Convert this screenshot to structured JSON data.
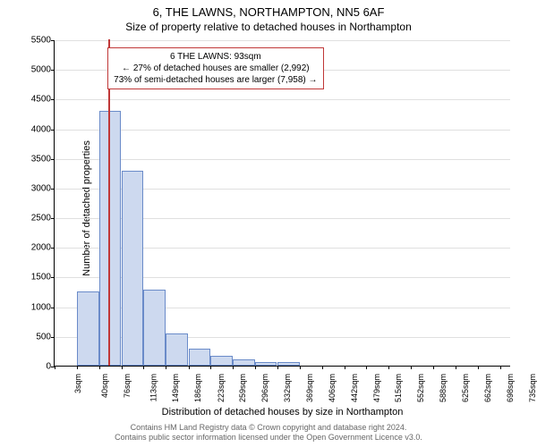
{
  "title": "6, THE LAWNS, NORTHAMPTON, NN5 6AF",
  "subtitle": "Size of property relative to detached houses in Northampton",
  "ylabel": "Number of detached properties",
  "xlabel": "Distribution of detached houses by size in Northampton",
  "footer_line1": "Contains HM Land Registry data © Crown copyright and database right 2024.",
  "footer_line2": "Contains public sector information licensed under the Open Government Licence v3.0.",
  "chart": {
    "type": "histogram",
    "ylim": [
      0,
      5500
    ],
    "ytick_step": 500,
    "x_min": 3,
    "x_max": 753,
    "bin_width": 37,
    "bar_fill": "#cdd9ef",
    "bar_stroke": "#6a8bc9",
    "grid_color": "#e0e0e0",
    "background_color": "#ffffff",
    "marker_x": 93,
    "marker_color": "#c03838",
    "xticks": [
      3,
      40,
      76,
      113,
      149,
      186,
      223,
      259,
      296,
      332,
      369,
      406,
      442,
      479,
      515,
      552,
      588,
      625,
      662,
      698,
      735
    ],
    "xtick_unit": "sqm",
    "bins": [
      {
        "start": 3,
        "count": 0
      },
      {
        "start": 40,
        "count": 1250
      },
      {
        "start": 76,
        "count": 4300
      },
      {
        "start": 113,
        "count": 3280
      },
      {
        "start": 149,
        "count": 1280
      },
      {
        "start": 186,
        "count": 550
      },
      {
        "start": 223,
        "count": 280
      },
      {
        "start": 259,
        "count": 160
      },
      {
        "start": 296,
        "count": 100
      },
      {
        "start": 332,
        "count": 60
      },
      {
        "start": 369,
        "count": 55
      },
      {
        "start": 406,
        "count": 0
      },
      {
        "start": 442,
        "count": 0
      },
      {
        "start": 479,
        "count": 0
      },
      {
        "start": 515,
        "count": 0
      },
      {
        "start": 552,
        "count": 0
      },
      {
        "start": 588,
        "count": 0
      },
      {
        "start": 625,
        "count": 0
      },
      {
        "start": 662,
        "count": 0
      },
      {
        "start": 698,
        "count": 0
      }
    ],
    "info_box": {
      "line1": "6 THE LAWNS: 93sqm",
      "line2": "← 27% of detached houses are smaller (2,992)",
      "line3": "73% of semi-detached houses are larger (7,958) →",
      "border_color": "#c03838",
      "text_color": "#000000",
      "left_sqm": 90,
      "top_val": 5380
    },
    "title_fontsize": 13,
    "subtitle_fontsize": 12,
    "label_fontsize": 11,
    "tick_fontsize": 10
  }
}
